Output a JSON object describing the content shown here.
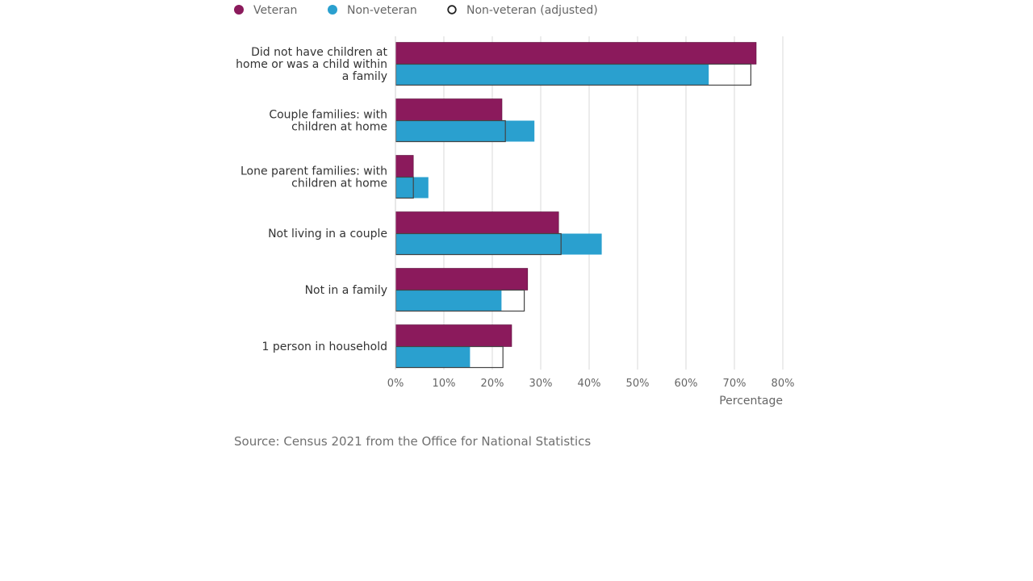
{
  "chart_data": {
    "type": "bar",
    "orientation": "horizontal",
    "categories": [
      [
        "Did not have children at",
        "home or was a child within",
        "a family"
      ],
      [
        "Couple families: with",
        "children at home"
      ],
      [
        "Lone parent families: with",
        "children at home"
      ],
      [
        "Not living in a couple"
      ],
      [
        "Not in a family"
      ],
      [
        "1 person in household"
      ]
    ],
    "series": [
      {
        "name": "Veteran",
        "color": "#8B1A5C",
        "style": "filled",
        "values": [
          74.5,
          22.0,
          3.7,
          33.7,
          27.3,
          24.0
        ]
      },
      {
        "name": "Non-veteran",
        "color": "#2AA0CF",
        "style": "filled",
        "values": [
          64.7,
          28.7,
          6.8,
          42.6,
          21.9,
          15.4
        ]
      },
      {
        "name": "Non-veteran (adjusted)",
        "color": "#444444",
        "style": "outline",
        "values": [
          73.4,
          22.7,
          3.7,
          34.2,
          26.6,
          22.2
        ]
      }
    ],
    "xaxis": {
      "label": "Percentage",
      "min": 0,
      "max": 80,
      "ticks": [
        0,
        10,
        20,
        30,
        40,
        50,
        60,
        70,
        80
      ],
      "tick_labels": [
        "0%",
        "10%",
        "20%",
        "30%",
        "40%",
        "50%",
        "60%",
        "70%",
        "80%"
      ]
    },
    "grid": true,
    "legend_position": "top-left"
  },
  "source": "Source: Census 2021 from the Office for National Statistics"
}
